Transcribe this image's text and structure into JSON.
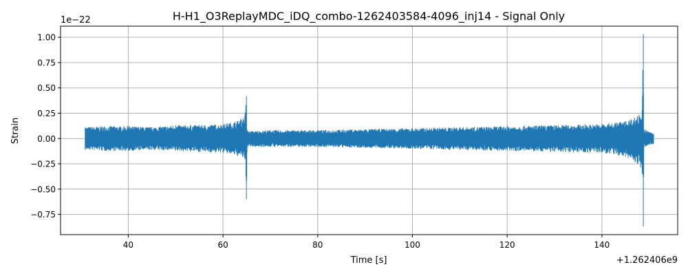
{
  "chart_data": {
    "type": "line",
    "title": "H-H1_O3ReplayMDC_iDQ_combo-1262403584-4096_inj14 - Signal Only",
    "xlabel": "Time [s]",
    "ylabel": "Strain",
    "x_offset_label": "+1.262406e9",
    "y_scale_label": "1e−22",
    "xlim": [
      25.7,
      156.0
    ],
    "ylim": [
      -0.95,
      1.11
    ],
    "grid": true,
    "x_ticks": [
      40,
      60,
      80,
      100,
      120,
      140
    ],
    "x_tick_labels": [
      "40",
      "60",
      "80",
      "100",
      "120",
      "140"
    ],
    "y_ticks": [
      -0.75,
      -0.5,
      -0.25,
      0.0,
      0.25,
      0.5,
      0.75,
      1.0
    ],
    "y_tick_labels": [
      "−0.75",
      "−0.50",
      "−0.25",
      "0.00",
      "0.25",
      "0.50",
      "0.75",
      "1.00"
    ],
    "series": [
      {
        "color": "#1f77b4",
        "envelope": {
          "x": [
            30.9,
            35,
            40,
            45,
            50,
            55,
            60,
            63,
            64.6,
            64.95,
            65.05,
            65.3,
            70,
            80,
            90,
            100,
            110,
            120,
            130,
            140,
            145,
            147.5,
            148.5,
            148.75,
            148.85,
            149.05,
            149.4,
            150,
            150.9
          ],
          "upper": [
            0.11,
            0.12,
            0.12,
            0.11,
            0.13,
            0.13,
            0.14,
            0.17,
            0.22,
            0.42,
            0.08,
            0.07,
            0.08,
            0.08,
            0.09,
            0.1,
            0.11,
            0.12,
            0.13,
            0.14,
            0.17,
            0.22,
            0.28,
            1.03,
            0.05,
            0.09,
            0.08,
            0.06,
            0.05
          ],
          "lower": [
            -0.11,
            -0.12,
            -0.12,
            -0.11,
            -0.12,
            -0.13,
            -0.14,
            -0.17,
            -0.2,
            -0.6,
            -0.06,
            -0.08,
            -0.08,
            -0.08,
            -0.09,
            -0.1,
            -0.11,
            -0.12,
            -0.13,
            -0.14,
            -0.18,
            -0.25,
            -0.35,
            -0.87,
            -0.06,
            -0.08,
            -0.07,
            -0.06,
            -0.05
          ]
        }
      }
    ]
  }
}
